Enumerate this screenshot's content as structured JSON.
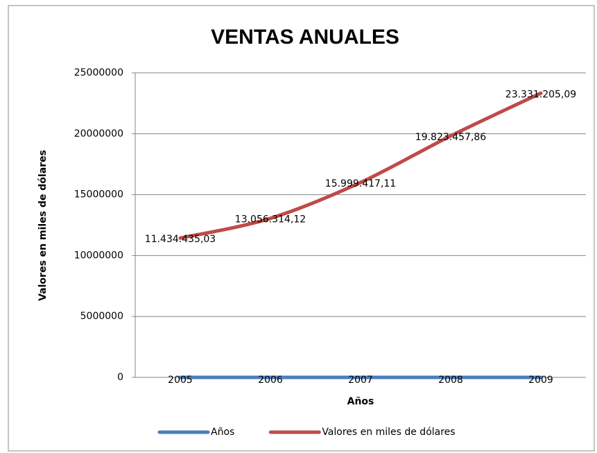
{
  "chart_data": {
    "type": "line",
    "title": "VENTAS ANUALES",
    "x_label": "Años",
    "y_label": "Valores en miles de dólares",
    "categories": [
      "2005",
      "2006",
      "2007",
      "2008",
      "2009"
    ],
    "series": [
      {
        "name": "Años",
        "color": "#4a7ebb",
        "values": [
          2005,
          2006,
          2007,
          2008,
          2009
        ]
      },
      {
        "name": "Valores en miles de dólares",
        "color": "#be4b48",
        "values": [
          11434435.03,
          13056314.12,
          15999417.11,
          19823457.86,
          23331205.09
        ],
        "value_labels": [
          "11.434.435,03",
          "13.056.314,12",
          "15.999.417,11",
          "19.823.457,86",
          "23.331.205,09"
        ]
      }
    ],
    "ylim": [
      0,
      25000000
    ],
    "yticks": [
      0,
      5000000,
      10000000,
      15000000,
      20000000,
      25000000
    ],
    "grid": true,
    "legend": "bottom"
  }
}
